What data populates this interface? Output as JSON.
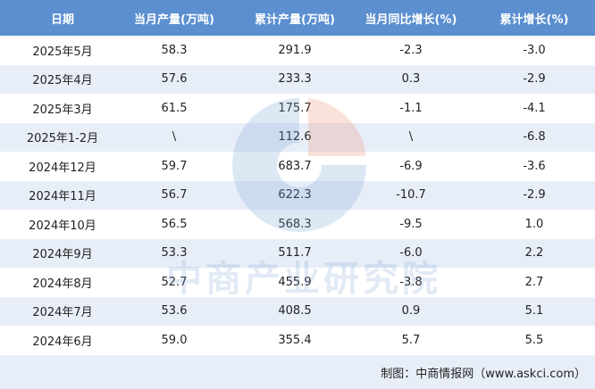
{
  "table": {
    "header": [
      "日期",
      "当月产量(万吨)",
      "累计产量(万吨)",
      "当月同比增长(%)",
      "累计增长(%)"
    ],
    "rows": [
      [
        "2025年5月",
        "58.3",
        "291.9",
        "-2.3",
        "-3.0"
      ],
      [
        "2025年4月",
        "57.6",
        "233.3",
        "0.3",
        "-2.9"
      ],
      [
        "2025年3月",
        "61.5",
        "175.7",
        "-1.1",
        "-4.1"
      ],
      [
        "2025年1-2月",
        "\\",
        "112.6",
        "\\",
        "-6.8"
      ],
      [
        "2024年12月",
        "59.7",
        "683.7",
        "-6.9",
        "-3.6"
      ],
      [
        "2024年11月",
        "56.7",
        "622.3",
        "-10.7",
        "-2.9"
      ],
      [
        "2024年10月",
        "56.5",
        "568.3",
        "-9.5",
        "1.0"
      ],
      [
        "2024年9月",
        "53.3",
        "511.7",
        "-6.0",
        "2.2"
      ],
      [
        "2024年8月",
        "52.7",
        "455.9",
        "-3.8",
        "2.7"
      ],
      [
        "2024年7月",
        "53.6",
        "408.5",
        "0.9",
        "5.1"
      ],
      [
        "2024年6月",
        "59.0",
        "355.4",
        "5.7",
        "5.5"
      ]
    ]
  },
  "watermark": "中商产业研究院",
  "footer": "制图：中商情报网（www.askci.com）"
}
